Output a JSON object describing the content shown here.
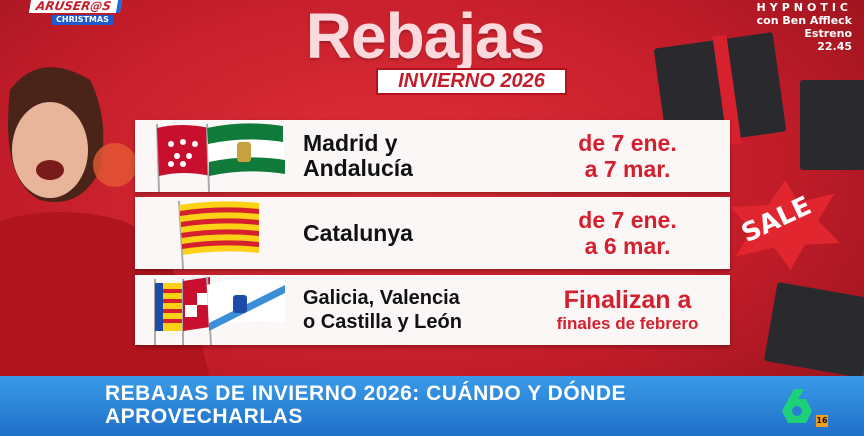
{
  "channel_show_logo": {
    "name": "ARUSER@S",
    "tag": "CHRISTMAS"
  },
  "promo": {
    "title": "HYPNOTIC",
    "line1": "con Ben Affleck",
    "line2": "Estreno",
    "time": "22.45"
  },
  "graphic": {
    "title": "Rebajas",
    "subtitle": "INVIERNO 2026",
    "rows": [
      {
        "places": [
          "Madrid y",
          "Andalucía"
        ],
        "dates": [
          "de 7 ene.",
          "a 7 mar."
        ],
        "flags": [
          "madrid-flag",
          "andalucia-flag"
        ]
      },
      {
        "places": [
          "Catalunya"
        ],
        "dates": [
          "de 7 ene.",
          "a 6 mar."
        ],
        "flags": [
          "catalunya-flag"
        ]
      },
      {
        "places": [
          "Galicia, Valencia",
          "o Castilla y León"
        ],
        "dates": [
          "Finalizan a",
          "finales de febrero"
        ],
        "flags": [
          "valencia-flag",
          "castilla-leon-flag",
          "galicia-flag"
        ]
      }
    ]
  },
  "background_sign": "SALE",
  "banner": {
    "line1": "REBAJAS DE INVIERNO 2026: CUÁNDO Y DÓNDE",
    "line2": "APROVECHARLAS"
  },
  "channel": {
    "logo": "laSexta-6",
    "age_rating": "16"
  },
  "colors": {
    "red": "#d4202e",
    "banner_blue": "#2a84d8",
    "logo_green": "#1ed07a"
  }
}
